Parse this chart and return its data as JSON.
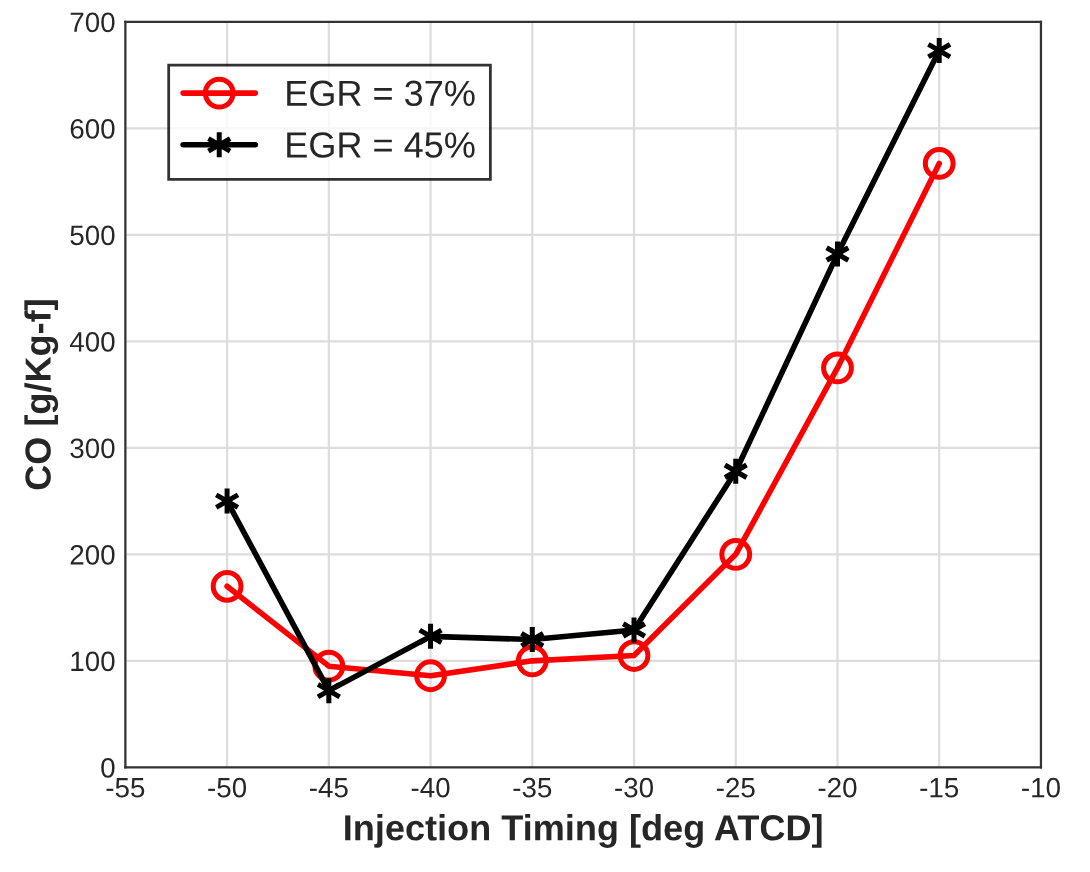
{
  "chart_data": {
    "type": "line",
    "xlabel": "Injection Timing [deg ATCD]",
    "ylabel": "CO [g/Kg-f]",
    "x": [
      -50,
      -45,
      -40,
      -35,
      -30,
      -25,
      -20,
      -15
    ],
    "series": [
      {
        "name": "EGR = 37%",
        "color": "#ff0000",
        "marker": "circle",
        "values": [
          170,
          95,
          86,
          100,
          105,
          200,
          375,
          567
        ]
      },
      {
        "name": "EGR = 45%",
        "color": "#000000",
        "marker": "cross",
        "values": [
          250,
          72,
          123,
          120,
          129,
          278,
          482,
          673
        ]
      }
    ],
    "xlim": [
      -55,
      -10
    ],
    "xticks": [
      -55,
      -50,
      -45,
      -40,
      -35,
      -30,
      -25,
      -20,
      -15,
      -10
    ],
    "ylim": [
      0,
      700
    ],
    "yticks": [
      0,
      100,
      200,
      300,
      400,
      500,
      600,
      700
    ],
    "grid": true,
    "legend": "top left",
    "line_style": "solid"
  }
}
